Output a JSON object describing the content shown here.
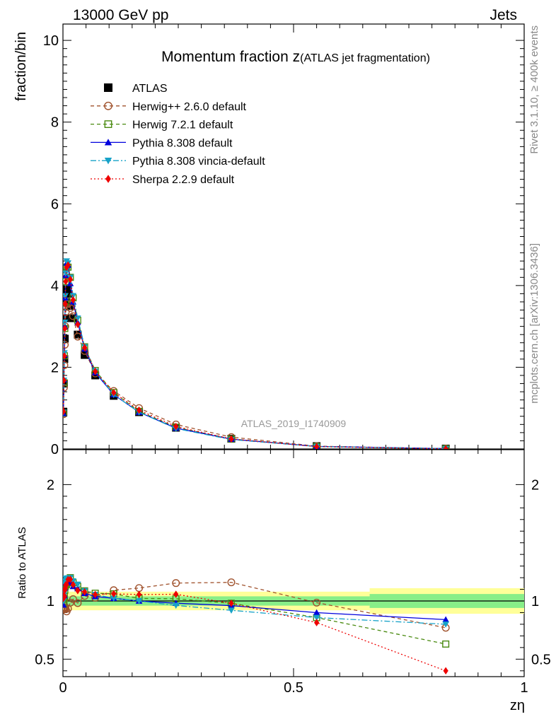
{
  "header": {
    "left": "13000 GeV pp",
    "right": "Jets"
  },
  "side_text": {
    "rivet": "Rivet 3.1.10, ≥ 400k events",
    "mcplots": "mcplots.cern.ch [arXiv:1306.3436]"
  },
  "chart_data": {
    "type": "scatter",
    "title_main": "Momentum fraction z",
    "title_sub": "(ATLAS jet fragmentation)",
    "analysis_id": "ATLAS_2019_I1740909",
    "xlabel": "zη",
    "ylabel_top": "fraction/bin",
    "ylabel_bottom": "Ratio to ATLAS",
    "xlim": [
      0,
      1
    ],
    "ylim_top": [
      0,
      10.4
    ],
    "ylim_ratio": [
      0.35,
      2.3
    ],
    "x_ticks": [
      "0",
      "0.5",
      "1"
    ],
    "y_ticks_top": [
      "0",
      "2",
      "4",
      "6",
      "8",
      "10"
    ],
    "y_ticks_ratio": [
      "0.5",
      "1",
      "2"
    ],
    "x": [
      0.001,
      0.002,
      0.003,
      0.004,
      0.005,
      0.006,
      0.008,
      0.011,
      0.016,
      0.022,
      0.032,
      0.047,
      0.07,
      0.11,
      0.165,
      0.245,
      0.365,
      0.55,
      0.83
    ],
    "legend": [
      {
        "name": "ATLAS",
        "color": "#000000",
        "marker": "square-filled",
        "line": "none"
      },
      {
        "name": "Herwig++ 2.6.0 default",
        "color": "#a0522d",
        "marker": "circle-open",
        "line": "dashed"
      },
      {
        "name": "Herwig 7.2.1 default",
        "color": "#4a8a10",
        "marker": "square-open",
        "line": "dashed"
      },
      {
        "name": "Pythia 8.308 default",
        "color": "#0000dd",
        "marker": "triangle-up",
        "line": "solid"
      },
      {
        "name": "Pythia 8.308 vincia-default",
        "color": "#17a2c8",
        "marker": "triangle-down",
        "line": "dashdot"
      },
      {
        "name": "Sherpa 2.2.9 default",
        "color": "#ee0000",
        "marker": "diamond",
        "line": "dotted"
      }
    ],
    "series": [
      {
        "name": "ATLAS",
        "values": [
          0.9,
          1.6,
          2.2,
          2.7,
          3.2,
          3.6,
          3.9,
          3.8,
          3.5,
          3.2,
          2.8,
          2.3,
          1.8,
          1.3,
          0.9,
          0.52,
          0.25,
          0.07,
          0.01
        ]
      },
      {
        "name": "Herwig++ 2.6.0 default",
        "values": [
          0.85,
          1.5,
          2.05,
          2.55,
          3.0,
          3.35,
          3.55,
          3.55,
          3.45,
          3.25,
          2.75,
          2.4,
          1.85,
          1.42,
          1.0,
          0.6,
          0.29,
          0.069,
          0.0077
        ]
      },
      {
        "name": "Herwig 7.2.1 default",
        "values": [
          0.88,
          1.62,
          2.28,
          2.95,
          3.6,
          4.1,
          4.45,
          4.45,
          4.2,
          3.7,
          3.15,
          2.5,
          1.92,
          1.38,
          0.92,
          0.53,
          0.245,
          0.06,
          0.0063
        ]
      },
      {
        "name": "Pythia 8.308 default",
        "values": [
          0.87,
          1.7,
          2.3,
          3.0,
          3.7,
          4.25,
          4.55,
          4.5,
          4.05,
          3.6,
          3.1,
          2.45,
          1.87,
          1.33,
          0.9,
          0.51,
          0.24,
          0.063,
          0.0084
        ]
      },
      {
        "name": "Pythia 8.308 vincia-default",
        "values": [
          0.9,
          1.68,
          2.35,
          3.1,
          3.75,
          4.3,
          4.6,
          4.55,
          4.2,
          3.75,
          3.2,
          2.5,
          1.9,
          1.33,
          0.9,
          0.5,
          0.23,
          0.06,
          0.008
        ]
      },
      {
        "name": "Sherpa 2.2.9 default",
        "values": [
          0.92,
          1.68,
          2.28,
          2.95,
          3.55,
          4.1,
          4.45,
          4.5,
          4.15,
          3.65,
          3.05,
          2.48,
          1.9,
          1.38,
          0.95,
          0.55,
          0.245,
          0.057,
          0.004
        ]
      }
    ],
    "ratio_band": [
      {
        "x0": 0.0,
        "x1": 0.665,
        "inner": 0.04,
        "outer": 0.08
      },
      {
        "x0": 0.665,
        "x1": 1.0,
        "inner": 0.06,
        "outer": 0.11
      }
    ],
    "grid": false,
    "legend_position": "top-left"
  }
}
